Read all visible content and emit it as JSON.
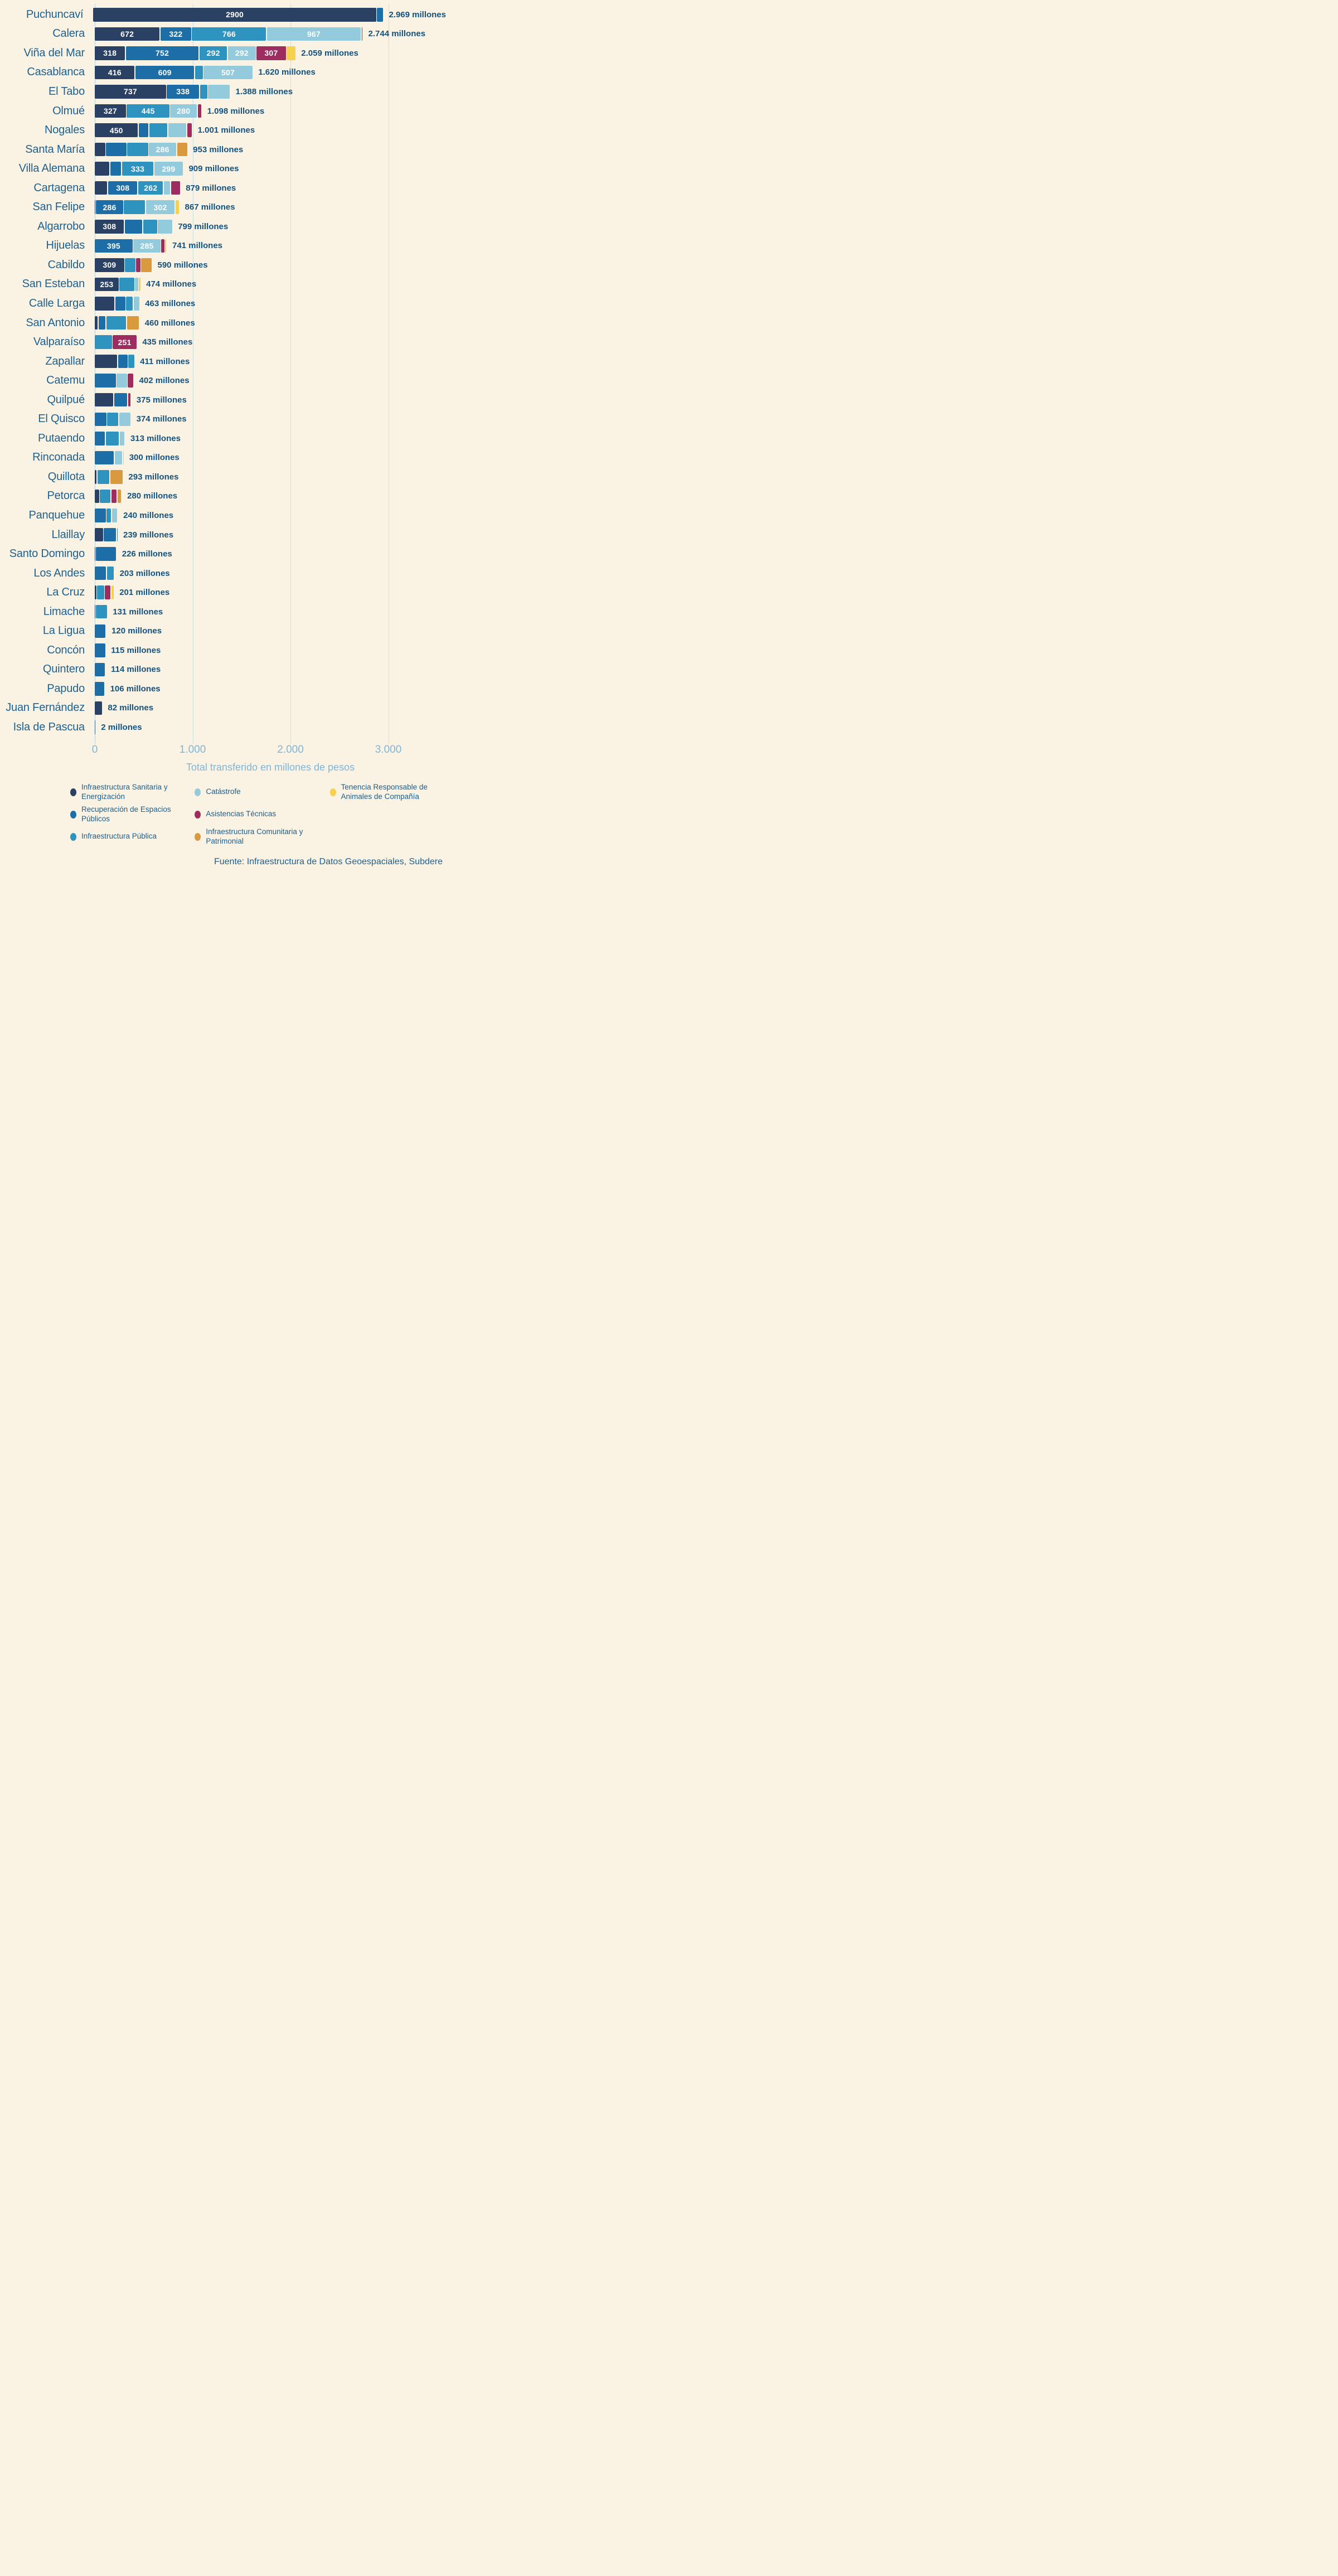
{
  "chart_data": {
    "type": "bar",
    "orientation": "horizontal-stacked",
    "title": "",
    "xlabel": "Total transferido en millones de pesos",
    "x_ticks": [
      {
        "label": "0",
        "value": 0
      },
      {
        "label": "1.000",
        "value": 1000
      },
      {
        "label": "2.000",
        "value": 2000
      },
      {
        "label": "3.000",
        "value": 3000
      }
    ],
    "xlim": [
      0,
      3560
    ],
    "grid": "vertical-lines",
    "legend_position": "bottom",
    "categories_meaning": "comunas",
    "series_meta": {
      "sanitaria": {
        "label": "Infraestructura Sanitaria y Energización",
        "color": "#2A4164"
      },
      "espacios": {
        "label": "Recuperación de Espacios Públicos",
        "color": "#1D6EA6"
      },
      "publica": {
        "label": "Infraestructura Pública",
        "color": "#2F93C0"
      },
      "catastrofe": {
        "label": "Catástrofe",
        "color": "#93CBDC"
      },
      "asistencias": {
        "label": "Asistencias Técnicas",
        "color": "#9D2C5F"
      },
      "comunitaria": {
        "label": "Infraestructura Comunitaria y Patrimonial",
        "color": "#D9993E"
      },
      "tenencia": {
        "label": "Tenencia Responsable de Animales de Compañía",
        "color": "#F6D14F"
      }
    },
    "rows": [
      {
        "name": "Puchuncaví",
        "total": "2.969 millones",
        "segs": [
          {
            "v": 2900,
            "k": "sanitaria",
            "t": "2900"
          },
          {
            "v": 69,
            "k": "espacios"
          }
        ]
      },
      {
        "name": "Calera",
        "total": "2.744 millones",
        "segs": [
          {
            "v": 672,
            "k": "sanitaria",
            "t": "672"
          },
          {
            "v": 322,
            "k": "espacios",
            "t": "322"
          },
          {
            "v": 766,
            "k": "publica",
            "t": "766"
          },
          {
            "v": 967,
            "k": "catastrofe",
            "t": "967"
          },
          {
            "v": 17,
            "k": "asistencias"
          }
        ]
      },
      {
        "name": "Viña del Mar",
        "total": "2.059 millones",
        "segs": [
          {
            "v": 318,
            "k": "sanitaria",
            "t": "318"
          },
          {
            "v": 752,
            "k": "espacios",
            "t": "752"
          },
          {
            "v": 292,
            "k": "publica",
            "t": "292"
          },
          {
            "v": 292,
            "k": "catastrofe",
            "t": "292"
          },
          {
            "v": 307,
            "k": "asistencias",
            "t": "307"
          },
          {
            "v": 98,
            "k": "tenencia"
          }
        ]
      },
      {
        "name": "Casablanca",
        "total": "1.620 millones",
        "segs": [
          {
            "v": 416,
            "k": "sanitaria",
            "t": "416"
          },
          {
            "v": 609,
            "k": "espacios",
            "t": "609"
          },
          {
            "v": 88,
            "k": "publica"
          },
          {
            "v": 507,
            "k": "catastrofe",
            "t": "507"
          }
        ]
      },
      {
        "name": "El Tabo",
        "total": "1.388 millones",
        "segs": [
          {
            "v": 737,
            "k": "sanitaria",
            "t": "737"
          },
          {
            "v": 338,
            "k": "espacios",
            "t": "338"
          },
          {
            "v": 84,
            "k": "publica"
          },
          {
            "v": 229,
            "k": "catastrofe"
          }
        ]
      },
      {
        "name": "Olmué",
        "total": "1.098 millones",
        "segs": [
          {
            "v": 327,
            "k": "sanitaria",
            "t": "327"
          },
          {
            "v": 445,
            "k": "publica",
            "t": "445"
          },
          {
            "v": 280,
            "k": "catastrofe",
            "t": "280"
          },
          {
            "v": 46,
            "k": "asistencias"
          }
        ]
      },
      {
        "name": "Nogales",
        "total": "1.001 millones",
        "segs": [
          {
            "v": 450,
            "k": "sanitaria",
            "t": "450"
          },
          {
            "v": 106,
            "k": "espacios"
          },
          {
            "v": 194,
            "k": "publica"
          },
          {
            "v": 194,
            "k": "catastrofe"
          },
          {
            "v": 57,
            "k": "asistencias"
          }
        ]
      },
      {
        "name": "Santa María",
        "total": "953 millones",
        "segs": [
          {
            "v": 115,
            "k": "sanitaria"
          },
          {
            "v": 217,
            "k": "espacios"
          },
          {
            "v": 223,
            "k": "publica"
          },
          {
            "v": 286,
            "k": "catastrofe",
            "t": "286"
          },
          {
            "v": 112,
            "k": "comunitaria"
          }
        ]
      },
      {
        "name": "Villa Alemana",
        "total": "909 millones",
        "segs": [
          {
            "v": 160,
            "k": "sanitaria"
          },
          {
            "v": 117,
            "k": "espacios"
          },
          {
            "v": 333,
            "k": "publica",
            "t": "333"
          },
          {
            "v": 299,
            "k": "catastrofe",
            "t": "299"
          }
        ]
      },
      {
        "name": "Cartagena",
        "total": "879 millones",
        "segs": [
          {
            "v": 137,
            "k": "sanitaria"
          },
          {
            "v": 308,
            "k": "espacios",
            "t": "308"
          },
          {
            "v": 262,
            "k": "publica",
            "t": "262"
          },
          {
            "v": 73,
            "k": "catastrofe"
          },
          {
            "v": 99,
            "k": "asistencias"
          }
        ]
      },
      {
        "name": "San Felipe",
        "total": "867 millones",
        "segs": [
          {
            "v": 10,
            "k": "sanitaria"
          },
          {
            "v": 286,
            "k": "espacios",
            "t": "286"
          },
          {
            "v": 225,
            "k": "publica"
          },
          {
            "v": 302,
            "k": "catastrofe",
            "t": "302"
          },
          {
            "v": 44,
            "k": "tenencia"
          }
        ]
      },
      {
        "name": "Algarrobo",
        "total": "799 millones",
        "segs": [
          {
            "v": 308,
            "k": "sanitaria",
            "t": "308"
          },
          {
            "v": 185,
            "k": "espacios"
          },
          {
            "v": 153,
            "k": "publica"
          },
          {
            "v": 153,
            "k": "catastrofe"
          }
        ]
      },
      {
        "name": "Hijuelas",
        "total": "741 millones",
        "segs": [
          {
            "v": 395,
            "k": "espacios",
            "t": "395"
          },
          {
            "v": 285,
            "k": "catastrofe",
            "t": "285"
          },
          {
            "v": 40,
            "k": "asistencias"
          },
          {
            "v": 21,
            "k": "tenencia"
          }
        ]
      },
      {
        "name": "Cabildo",
        "total": "590 millones",
        "segs": [
          {
            "v": 309,
            "k": "sanitaria",
            "t": "309"
          },
          {
            "v": 115,
            "k": "publica"
          },
          {
            "v": 50,
            "k": "asistencias"
          },
          {
            "v": 116,
            "k": "comunitaria"
          }
        ]
      },
      {
        "name": "San Esteban",
        "total": "474 millones",
        "segs": [
          {
            "v": 253,
            "k": "sanitaria",
            "t": "253"
          },
          {
            "v": 160,
            "k": "publica"
          },
          {
            "v": 40,
            "k": "catastrofe"
          },
          {
            "v": 21,
            "k": "tenencia"
          }
        ]
      },
      {
        "name": "Calle Larga",
        "total": "463 millones",
        "segs": [
          {
            "v": 210,
            "k": "sanitaria"
          },
          {
            "v": 111,
            "k": "espacios"
          },
          {
            "v": 76,
            "k": "publica"
          },
          {
            "v": 66,
            "k": "catastrofe"
          }
        ]
      },
      {
        "name": "San Antonio",
        "total": "460 millones",
        "segs": [
          {
            "v": 39,
            "k": "sanitaria"
          },
          {
            "v": 78,
            "k": "espacios"
          },
          {
            "v": 213,
            "k": "publica"
          },
          {
            "v": 130,
            "k": "comunitaria"
          }
        ]
      },
      {
        "name": "Valparaíso",
        "total": "435 millones",
        "segs": [
          {
            "v": 184,
            "k": "publica"
          },
          {
            "v": 251,
            "k": "asistencias",
            "t": "251"
          }
        ]
      },
      {
        "name": "Zapallar",
        "total": "411 millones",
        "segs": [
          {
            "v": 239,
            "k": "sanitaria"
          },
          {
            "v": 105,
            "k": "espacios"
          },
          {
            "v": 67,
            "k": "publica"
          }
        ]
      },
      {
        "name": "Catemu",
        "total": "402 millones",
        "segs": [
          {
            "v": 223,
            "k": "espacios"
          },
          {
            "v": 115,
            "k": "catastrofe"
          },
          {
            "v": 64,
            "k": "asistencias"
          }
        ]
      },
      {
        "name": "Quilpué",
        "total": "375 millones",
        "segs": [
          {
            "v": 198,
            "k": "sanitaria"
          },
          {
            "v": 144,
            "k": "espacios"
          },
          {
            "v": 33,
            "k": "asistencias"
          }
        ]
      },
      {
        "name": "El Quisco",
        "total": "374 millones",
        "segs": [
          {
            "v": 126,
            "k": "espacios"
          },
          {
            "v": 125,
            "k": "publica"
          },
          {
            "v": 123,
            "k": "catastrofe"
          }
        ]
      },
      {
        "name": "Putaendo",
        "total": "313 millones",
        "segs": [
          {
            "v": 112,
            "k": "espacios"
          },
          {
            "v": 142,
            "k": "publica"
          },
          {
            "v": 59,
            "k": "catastrofe"
          }
        ]
      },
      {
        "name": "Rinconada",
        "total": "300 millones",
        "segs": [
          {
            "v": 203,
            "k": "espacios"
          },
          {
            "v": 85,
            "k": "catastrofe"
          },
          {
            "v": 12,
            "k": "tenencia"
          }
        ]
      },
      {
        "name": "Quillota",
        "total": "293 millones",
        "segs": [
          {
            "v": 29,
            "k": "sanitaria"
          },
          {
            "v": 128,
            "k": "publica"
          },
          {
            "v": 136,
            "k": "comunitaria"
          }
        ]
      },
      {
        "name": "Petorca",
        "total": "280 millones",
        "segs": [
          {
            "v": 53,
            "k": "sanitaria"
          },
          {
            "v": 117,
            "k": "publica"
          },
          {
            "v": 63,
            "k": "asistencias"
          },
          {
            "v": 47,
            "k": "comunitaria"
          }
        ]
      },
      {
        "name": "Panquehue",
        "total": "240 millones",
        "segs": [
          {
            "v": 122,
            "k": "espacios"
          },
          {
            "v": 55,
            "k": "publica"
          },
          {
            "v": 63,
            "k": "catastrofe"
          }
        ]
      },
      {
        "name": "Llaillay",
        "total": "239 millones",
        "segs": [
          {
            "v": 94,
            "k": "sanitaria"
          },
          {
            "v": 133,
            "k": "espacios"
          },
          {
            "v": 12,
            "k": "publica"
          }
        ]
      },
      {
        "name": "Santo Domingo",
        "total": "226 millones",
        "segs": [
          {
            "v": 12,
            "k": "sanitaria"
          },
          {
            "v": 214,
            "k": "espacios"
          }
        ]
      },
      {
        "name": "Los Andes",
        "total": "203 millones",
        "segs": [
          {
            "v": 124,
            "k": "espacios"
          },
          {
            "v": 79,
            "k": "publica"
          }
        ]
      },
      {
        "name": "La Cruz",
        "total": "201 millones",
        "segs": [
          {
            "v": 24,
            "k": "sanitaria"
          },
          {
            "v": 81,
            "k": "publica"
          },
          {
            "v": 65,
            "k": "asistencias"
          },
          {
            "v": 31,
            "k": "tenencia"
          }
        ]
      },
      {
        "name": "Limache",
        "total": "131 millones",
        "segs": [
          {
            "v": 11,
            "k": "sanitaria"
          },
          {
            "v": 120,
            "k": "publica"
          }
        ]
      },
      {
        "name": "La Ligua",
        "total": "120 millones",
        "segs": [
          {
            "v": 120,
            "k": "espacios"
          }
        ]
      },
      {
        "name": "Concón",
        "total": "115 millones",
        "segs": [
          {
            "v": 115,
            "k": "espacios"
          }
        ]
      },
      {
        "name": "Quintero",
        "total": "114 millones",
        "segs": [
          {
            "v": 114,
            "k": "espacios"
          }
        ]
      },
      {
        "name": "Papudo",
        "total": "106 millones",
        "segs": [
          {
            "v": 106,
            "k": "espacios"
          }
        ]
      },
      {
        "name": "Juan Fernández",
        "total": "82 millones",
        "segs": [
          {
            "v": 82,
            "k": "sanitaria"
          }
        ]
      },
      {
        "name": "Isla de Pascua",
        "total": "2 millones",
        "segs": [
          {
            "v": 2,
            "k": "espacios"
          }
        ]
      }
    ],
    "legend_columns": [
      [
        "sanitaria",
        "espacios",
        "publica"
      ],
      [
        "catastrofe",
        "asistencias",
        "comunitaria"
      ],
      [
        "tenencia"
      ]
    ]
  },
  "colors": {
    "background": "#FAF2E3",
    "gridline": "#C6DEEE",
    "commune_label": "#1F618F",
    "total_label": "#14537F",
    "axis_text": "#7EB6D9",
    "legend_text": "#1C6090",
    "segment_value_text": "#FFFFFF"
  },
  "footer": {
    "source": "Fuente: Infraestructura de Datos Geoespaciales, Subdere"
  }
}
